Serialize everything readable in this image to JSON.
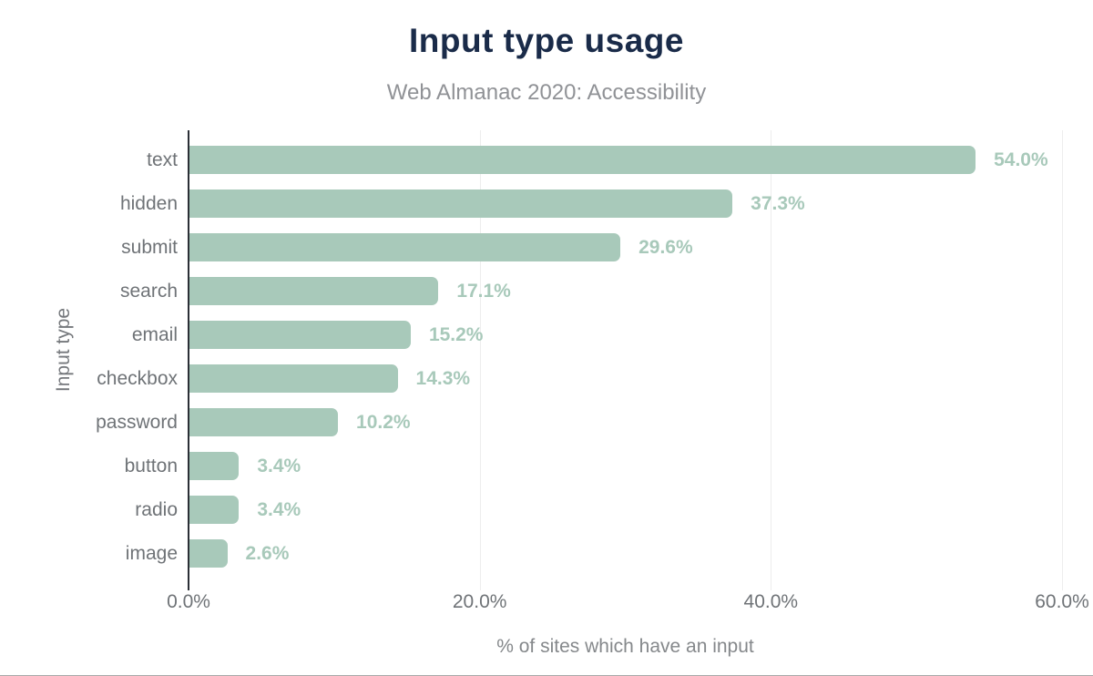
{
  "page": {
    "title": "Input type usage",
    "subtitle": "Web Almanac 2020: Accessibility"
  },
  "chart_data": {
    "type": "bar",
    "orientation": "horizontal",
    "title": "Input type usage",
    "subtitle": "Web Almanac 2020: Accessibility",
    "categories": [
      "text",
      "hidden",
      "submit",
      "search",
      "email",
      "checkbox",
      "password",
      "button",
      "radio",
      "image"
    ],
    "values": [
      54.0,
      37.3,
      29.6,
      17.1,
      15.2,
      14.3,
      10.2,
      3.4,
      3.4,
      2.6
    ],
    "value_labels": [
      "54.0%",
      "37.3%",
      "29.6%",
      "17.1%",
      "15.2%",
      "14.3%",
      "10.2%",
      "3.4%",
      "3.4%",
      "2.6%"
    ],
    "xlabel": "% of sites which have an input",
    "ylabel": "Input type",
    "xlim": [
      0,
      60
    ],
    "x_ticks": [
      0,
      20,
      40,
      60
    ],
    "x_tick_labels": [
      "0.0%",
      "20.0%",
      "40.0%",
      "60.0%"
    ],
    "grid": "vertical gridlines at 20/40/60, light gray",
    "legend": "none",
    "colors": {
      "bar": "#a8c9ba",
      "value_label": "#a8c9ba",
      "title": "#1a2b49",
      "subtitle": "#909296",
      "axis_text": "#6f7377",
      "axis_line": "#2b2f36",
      "gridline": "#ededed"
    }
  }
}
